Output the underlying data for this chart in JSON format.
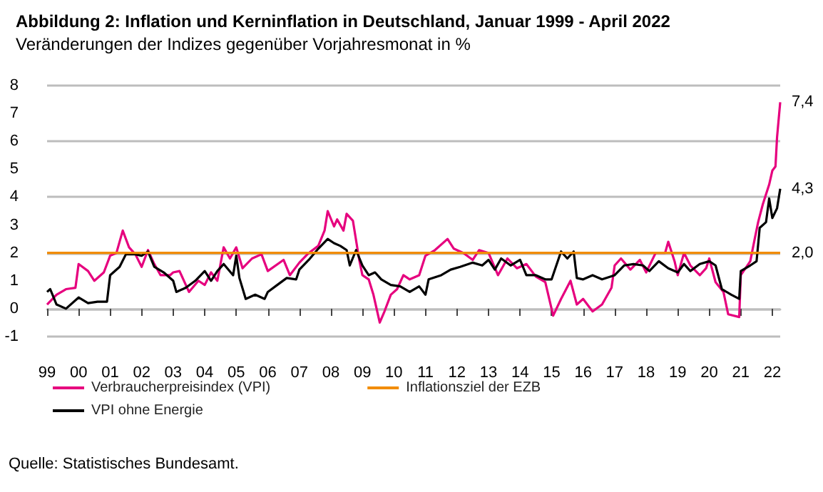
{
  "chart_data": {
    "type": "line",
    "title": "Abbildung 2: Inflation und Kerninflation in Deutschland, Januar 1999 - April 2022",
    "subtitle": "Veränderungen der Indizes gegenüber Vorjahresmonat in %",
    "x": [
      1999.0,
      1999.3,
      1999.6,
      1999.9,
      2000.0,
      2000.3,
      2000.5,
      2000.8,
      2001.0,
      2001.2,
      2001.4,
      2001.6,
      2001.8,
      2002.0,
      2002.2,
      2002.4,
      2002.6,
      2002.9,
      2003.0,
      2003.2,
      2003.5,
      2003.8,
      2004.0,
      2004.2,
      2004.4,
      2004.6,
      2004.8,
      2005.0,
      2005.2,
      2005.5,
      2005.8,
      2006.0,
      2006.5,
      2006.7,
      2007.0,
      2007.3,
      2007.6,
      2007.8,
      2007.9,
      2008.1,
      2008.2,
      2008.4,
      2008.5,
      2008.7,
      2008.9,
      2009.0,
      2009.2,
      2009.35,
      2009.55,
      2009.7,
      2009.9,
      2010.1,
      2010.3,
      2010.5,
      2010.8,
      2011.0,
      2011.3,
      2011.7,
      2011.9,
      2012.2,
      2012.5,
      2012.7,
      2013.0,
      2013.3,
      2013.6,
      2013.9,
      2014.2,
      2014.5,
      2014.8,
      2015.05,
      2015.3,
      2015.6,
      2015.8,
      2016.0,
      2016.3,
      2016.6,
      2016.9,
      2017.0,
      2017.2,
      2017.5,
      2017.8,
      2018.0,
      2018.3,
      2018.6,
      2018.7,
      2018.9,
      2019.0,
      2019.2,
      2019.4,
      2019.7,
      2019.9,
      2020.0,
      2020.2,
      2020.45,
      2020.6,
      2020.95,
      2021.0,
      2021.3,
      2021.45,
      2021.55,
      2021.7,
      2021.9,
      2022.0,
      2022.1,
      2022.15,
      2022.25
    ],
    "series": [
      {
        "name": "Verbraucherpreisindex (VPI)",
        "color": "#e6007e",
        "values": [
          0.15,
          0.5,
          0.7,
          0.75,
          1.6,
          1.35,
          1.0,
          1.3,
          1.9,
          2.0,
          2.8,
          2.2,
          1.95,
          1.5,
          2.1,
          1.6,
          1.2,
          1.2,
          1.3,
          1.35,
          0.6,
          1.0,
          0.85,
          1.3,
          1.0,
          2.2,
          1.8,
          2.2,
          1.45,
          1.8,
          1.95,
          1.35,
          1.75,
          1.2,
          1.65,
          2.0,
          2.25,
          2.8,
          3.5,
          2.95,
          3.2,
          2.8,
          3.4,
          3.15,
          1.75,
          1.2,
          1.05,
          0.5,
          -0.5,
          -0.1,
          0.5,
          0.7,
          1.2,
          1.05,
          1.2,
          1.9,
          2.1,
          2.5,
          2.15,
          2.0,
          1.75,
          2.1,
          2.0,
          1.2,
          1.8,
          1.45,
          1.6,
          1.15,
          0.95,
          -0.25,
          0.35,
          1.0,
          0.15,
          0.35,
          -0.1,
          0.15,
          0.75,
          1.55,
          1.8,
          1.4,
          1.75,
          1.3,
          2.0,
          2.0,
          2.4,
          1.7,
          1.2,
          2.0,
          1.55,
          1.2,
          1.45,
          1.8,
          0.95,
          0.6,
          -0.2,
          -0.3,
          1.2,
          1.7,
          2.55,
          3.1,
          3.75,
          4.45,
          4.95,
          5.1,
          6.15,
          7.4
        ],
        "value_labels": [
          null,
          null,
          null,
          null,
          null,
          null,
          null,
          null,
          null,
          null,
          null,
          null,
          null,
          null,
          null,
          null,
          null,
          null,
          null,
          null,
          null,
          null,
          null,
          null,
          null,
          null,
          null,
          null,
          null,
          null,
          null,
          null,
          null,
          null,
          null,
          null,
          null,
          null,
          null,
          null,
          null,
          null,
          null,
          null,
          null,
          null,
          null,
          null,
          null,
          null,
          null,
          null,
          null,
          null,
          null,
          null,
          null,
          null,
          null,
          null,
          null,
          null,
          null,
          null,
          null,
          null,
          null,
          null,
          null,
          null,
          null,
          null,
          null,
          null,
          null,
          null,
          null,
          null,
          null,
          null,
          null,
          null,
          null,
          null,
          null,
          null,
          null,
          null,
          null,
          null,
          null,
          null,
          null,
          null,
          null,
          null,
          null,
          null,
          null,
          null,
          null,
          null,
          null,
          null,
          null,
          "7,4"
        ]
      },
      {
        "name": "VPI ohne Energie",
        "color": "#000000",
        "x": [
          1999.0,
          1999.1,
          1999.3,
          1999.6,
          2000.0,
          2000.3,
          2000.6,
          2000.9,
          2001.0,
          2001.3,
          2001.5,
          2001.8,
          2002.0,
          2002.2,
          2002.4,
          2002.7,
          2003.0,
          2003.1,
          2003.4,
          2003.7,
          2004.0,
          2004.2,
          2004.4,
          2004.6,
          2004.9,
          2005.0,
          2005.1,
          2005.3,
          2005.6,
          2005.9,
          2006.0,
          2006.3,
          2006.6,
          2006.9,
          2007.0,
          2007.3,
          2007.6,
          2007.9,
          2008.1,
          2008.3,
          2008.5,
          2008.6,
          2008.8,
          2009.0,
          2009.2,
          2009.4,
          2009.6,
          2009.9,
          2010.2,
          2010.5,
          2010.8,
          2011.0,
          2011.1,
          2011.5,
          2011.8,
          2012.1,
          2012.5,
          2012.8,
          2013.0,
          2013.2,
          2013.4,
          2013.7,
          2014.0,
          2014.2,
          2014.5,
          2014.8,
          2015.0,
          2015.3,
          2015.5,
          2015.7,
          2015.8,
          2016.0,
          2016.3,
          2016.6,
          2017.0,
          2017.3,
          2017.6,
          2017.9,
          2018.1,
          2018.4,
          2018.7,
          2019.0,
          2019.2,
          2019.4,
          2019.7,
          2020.0,
          2020.2,
          2020.4,
          2020.7,
          2020.95,
          2021.0,
          2021.3,
          2021.5,
          2021.6,
          2021.8,
          2021.9,
          2022.0,
          2022.15,
          2022.25
        ],
        "values": [
          0.6,
          0.7,
          0.15,
          0.0,
          0.4,
          0.2,
          0.25,
          0.25,
          1.2,
          1.5,
          1.95,
          1.95,
          1.9,
          2.05,
          1.5,
          1.3,
          1.0,
          0.6,
          0.75,
          1.0,
          1.35,
          1.0,
          1.35,
          1.6,
          1.2,
          1.9,
          1.1,
          0.35,
          0.5,
          0.35,
          0.6,
          0.85,
          1.1,
          1.05,
          1.4,
          1.75,
          2.15,
          2.5,
          2.35,
          2.25,
          2.1,
          1.55,
          2.1,
          1.55,
          1.2,
          1.3,
          1.05,
          0.85,
          0.8,
          0.6,
          0.8,
          0.5,
          1.05,
          1.2,
          1.4,
          1.5,
          1.65,
          1.55,
          1.75,
          1.4,
          1.8,
          1.55,
          1.75,
          1.2,
          1.2,
          1.05,
          1.05,
          2.05,
          1.8,
          2.05,
          1.1,
          1.05,
          1.2,
          1.05,
          1.2,
          1.55,
          1.6,
          1.55,
          1.35,
          1.7,
          1.45,
          1.3,
          1.6,
          1.35,
          1.6,
          1.7,
          1.55,
          0.7,
          0.5,
          0.35,
          1.35,
          1.55,
          1.7,
          2.9,
          3.1,
          3.95,
          3.25,
          3.6,
          4.3
        ],
        "value_labels": [
          null,
          null,
          null,
          null,
          null,
          null,
          null,
          null,
          null,
          null,
          null,
          null,
          null,
          null,
          null,
          null,
          null,
          null,
          null,
          null,
          null,
          null,
          null,
          null,
          null,
          null,
          null,
          null,
          null,
          null,
          null,
          null,
          null,
          null,
          null,
          null,
          null,
          null,
          null,
          null,
          null,
          null,
          null,
          null,
          null,
          null,
          null,
          null,
          null,
          null,
          null,
          null,
          null,
          null,
          null,
          null,
          null,
          null,
          null,
          null,
          null,
          null,
          null,
          null,
          null,
          null,
          null,
          null,
          null,
          null,
          null,
          null,
          null,
          null,
          null,
          null,
          null,
          null,
          null,
          null,
          null,
          null,
          null,
          null,
          null,
          null,
          null,
          null,
          null,
          null,
          null,
          null,
          null,
          null,
          null,
          null,
          null,
          null,
          "4,3"
        ]
      },
      {
        "name": "Inflationsziel der EZB",
        "color": "#f28c00",
        "x": [
          1999,
          2022.25
        ],
        "values": [
          2.0,
          2.0
        ],
        "value_labels": [
          null,
          "2,0"
        ]
      }
    ],
    "xlim": [
      1999,
      2022.25
    ],
    "xticks": [
      {
        "value": 1999,
        "label": "99"
      },
      {
        "value": 2000,
        "label": "00"
      },
      {
        "value": 2001,
        "label": "01"
      },
      {
        "value": 2002,
        "label": "02"
      },
      {
        "value": 2003,
        "label": "03"
      },
      {
        "value": 2004,
        "label": "04"
      },
      {
        "value": 2005,
        "label": "05"
      },
      {
        "value": 2006,
        "label": "06"
      },
      {
        "value": 2007,
        "label": "07"
      },
      {
        "value": 2008,
        "label": "08"
      },
      {
        "value": 2009,
        "label": "09"
      },
      {
        "value": 2010,
        "label": "10"
      },
      {
        "value": 2011,
        "label": "11"
      },
      {
        "value": 2012,
        "label": "12"
      },
      {
        "value": 2013,
        "label": "13"
      },
      {
        "value": 2014,
        "label": "14"
      },
      {
        "value": 2015,
        "label": "15"
      },
      {
        "value": 2016,
        "label": "16"
      },
      {
        "value": 2017,
        "label": "17"
      },
      {
        "value": 2018,
        "label": "18"
      },
      {
        "value": 2019,
        "label": "19"
      },
      {
        "value": 2020,
        "label": "20"
      },
      {
        "value": 2021,
        "label": "21"
      },
      {
        "value": 2022,
        "label": "22"
      }
    ],
    "ylim": [
      -1,
      8
    ],
    "yticks": [
      -1,
      0,
      1,
      2,
      3,
      4,
      5,
      6,
      7,
      8
    ],
    "grid": "y",
    "legend": "bottom",
    "marker": "none",
    "line_style": "solid",
    "annotations": [
      "Quelle: Statistisches Bundesamt."
    ]
  }
}
